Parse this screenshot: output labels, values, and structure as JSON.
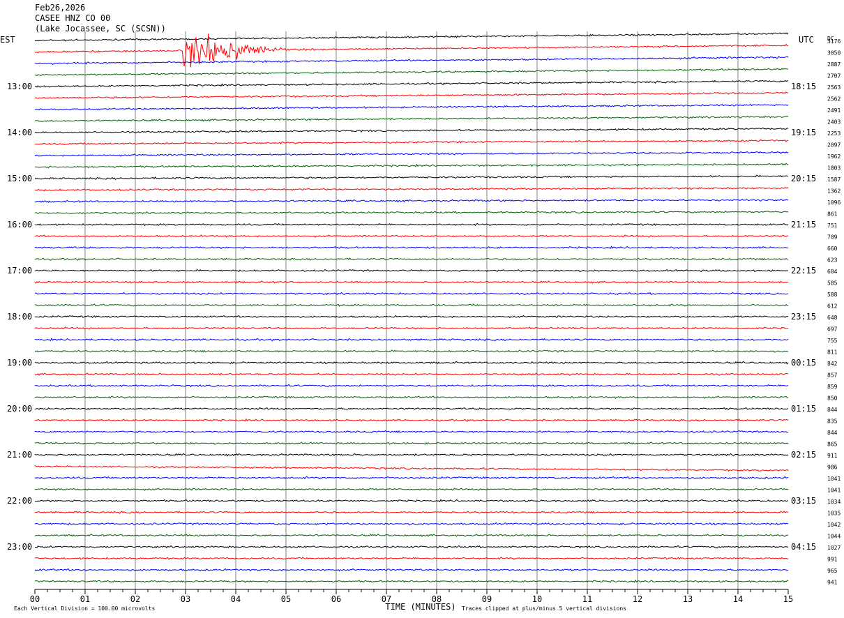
{
  "header": {
    "date": "Feb26,2026",
    "station": "CASEE HNZ CO 00",
    "location": "(Lake Jocassee, SC (SCSN))"
  },
  "chart_data": {
    "type": "line",
    "title": "",
    "left_tz": "EST",
    "right_tz": "UTC",
    "right_col_label": "DC",
    "xlabel": "TIME (MINUTES)",
    "xlim": [
      0,
      15
    ],
    "x_ticks": [
      "00",
      "01",
      "02",
      "03",
      "04",
      "05",
      "06",
      "07",
      "08",
      "09",
      "10",
      "11",
      "12",
      "13",
      "14",
      "15"
    ],
    "left_hour_labels": [
      "13:00",
      "14:00",
      "15:00",
      "16:00",
      "17:00",
      "18:00",
      "19:00",
      "20:00",
      "21:00",
      "22:00",
      "23:00"
    ],
    "right_hour_labels": [
      "18:15",
      "19:15",
      "20:15",
      "21:15",
      "22:15",
      "23:15",
      "00:15",
      "01:15",
      "02:15",
      "03:15",
      "04:15"
    ],
    "trace_colors": [
      "#000000",
      "#ff0000",
      "#0000ff",
      "#006400"
    ],
    "dc_offsets": [
      3176,
      3050,
      2887,
      2707,
      2563,
      2562,
      2491,
      2403,
      2253,
      2097,
      1962,
      1803,
      1587,
      1362,
      1096,
      861,
      751,
      709,
      660,
      623,
      604,
      585,
      588,
      612,
      648,
      697,
      755,
      811,
      842,
      857,
      859,
      850,
      844,
      835,
      844,
      865,
      911,
      986,
      1041,
      1041,
      1034,
      1035,
      1042,
      1044,
      1027,
      991,
      965,
      941
    ],
    "footer_left": "Each Vertical Division =  100.00 microvolts",
    "footer_right": "Traces clipped at plus/minus 5 vertical divisions",
    "grid": true,
    "events": [
      {
        "trace": 1,
        "start_min": 2.95,
        "end_min": 5.0,
        "peak_min": 3.45,
        "description": "earthquake burst"
      }
    ]
  }
}
